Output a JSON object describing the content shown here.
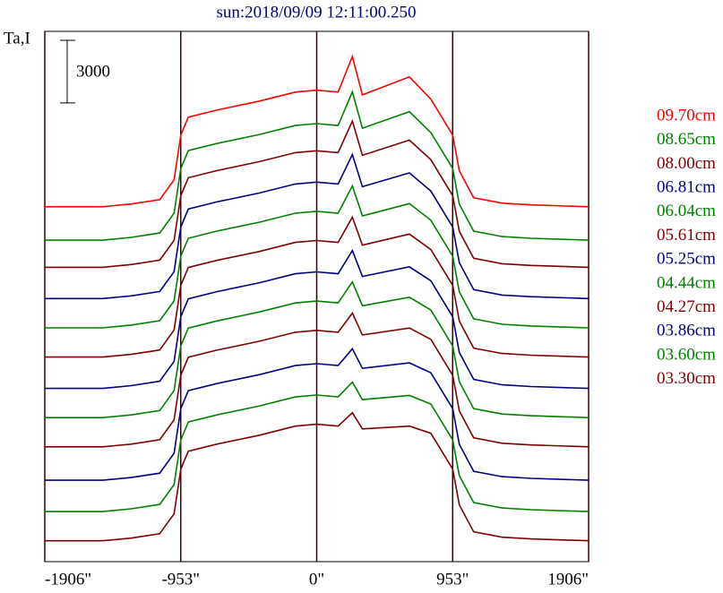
{
  "chart_data": {
    "type": "line",
    "title": "sun:2018/09/09 12:11:00.250",
    "y_label": "Ta,I",
    "scale_bar": 3000,
    "grid": true,
    "legend": "right",
    "x": [
      -1906,
      -1500,
      -1300,
      -1100,
      -1000,
      -953,
      -900,
      -700,
      -400,
      -150,
      0,
      150,
      250,
      320,
      650,
      800,
      953,
      1000,
      1100,
      1300,
      1500,
      1906
    ],
    "xlim": [
      -1906,
      1906
    ],
    "xticks": [
      {
        "value": -1906,
        "label": "-1906\""
      },
      {
        "value": -953,
        "label": "-953\""
      },
      {
        "value": 0,
        "label": "0\""
      },
      {
        "value": 953,
        "label": "953\""
      },
      {
        "value": 1906,
        "label": "1906\""
      }
    ],
    "ylim": [
      0,
      25400
    ],
    "series": [
      {
        "name": "09.70cm",
        "color": "#ff0000",
        "values": [
          17000,
          17000,
          17130,
          17340,
          18290,
          20430,
          21290,
          21630,
          22060,
          22490,
          22580,
          22490,
          24200,
          22360,
          23220,
          22150,
          20430,
          18720,
          17430,
          17170,
          17090,
          17000
        ]
      },
      {
        "name": "08.65cm",
        "color": "#008000",
        "values": [
          15400,
          15400,
          15530,
          15740,
          16690,
          18830,
          19690,
          20030,
          20460,
          20890,
          20980,
          20890,
          22500,
          20760,
          21550,
          20550,
          18830,
          17120,
          15830,
          15570,
          15490,
          15400
        ]
      },
      {
        "name": "08.00cm",
        "color": "#800000",
        "values": [
          14100,
          14100,
          14230,
          14440,
          15390,
          17530,
          18390,
          18730,
          19160,
          19590,
          19680,
          19590,
          21100,
          19460,
          20190,
          19250,
          17530,
          15820,
          14530,
          14270,
          14190,
          14100
        ]
      },
      {
        "name": "06.81cm",
        "color": "#000080",
        "values": [
          12600,
          12600,
          12730,
          12940,
          13890,
          16030,
          16890,
          17230,
          17660,
          18090,
          18180,
          18090,
          19500,
          17960,
          18620,
          17750,
          16030,
          14320,
          13030,
          12770,
          12690,
          12600
        ]
      },
      {
        "name": "06.04cm",
        "color": "#008000",
        "values": [
          11200,
          11200,
          11330,
          11540,
          12490,
          14630,
          15490,
          15830,
          16260,
          16690,
          16780,
          16690,
          18000,
          16560,
          17150,
          16350,
          14630,
          12920,
          11630,
          11370,
          11290,
          11200
        ]
      },
      {
        "name": "05.61cm",
        "color": "#800000",
        "values": [
          9800,
          9800,
          9930,
          10140,
          11090,
          13230,
          14090,
          14430,
          14860,
          15290,
          15380,
          15290,
          16500,
          15160,
          15690,
          14950,
          13230,
          11520,
          10230,
          9970,
          9890,
          9800
        ]
      },
      {
        "name": "05.25cm",
        "color": "#000080",
        "values": [
          8300,
          8300,
          8430,
          8640,
          9590,
          11730,
          12590,
          12930,
          13360,
          13790,
          13880,
          13790,
          14900,
          13660,
          14120,
          13450,
          11730,
          10020,
          8730,
          8470,
          8390,
          8300
        ]
      },
      {
        "name": "04.44cm",
        "color": "#008000",
        "values": [
          6900,
          6900,
          7030,
          7240,
          8190,
          10330,
          11190,
          11530,
          11960,
          12390,
          12480,
          12390,
          13400,
          12260,
          12660,
          12050,
          10330,
          8620,
          7330,
          7070,
          6990,
          6900
        ]
      },
      {
        "name": "04.27cm",
        "color": "#800000",
        "values": [
          5500,
          5500,
          5630,
          5840,
          6790,
          8930,
          9790,
          10130,
          10560,
          10990,
          11080,
          10990,
          11900,
          10860,
          11190,
          10650,
          8930,
          7220,
          5930,
          5670,
          5590,
          5500
        ]
      },
      {
        "name": "03.86cm",
        "color": "#000080",
        "values": [
          3900,
          3900,
          4030,
          4240,
          5190,
          7330,
          8190,
          8530,
          8960,
          9390,
          9480,
          9390,
          10200,
          9260,
          9520,
          9050,
          7330,
          5620,
          4330,
          4070,
          3990,
          3900
        ]
      },
      {
        "name": "03.60cm",
        "color": "#008000",
        "values": [
          2400,
          2400,
          2530,
          2740,
          3690,
          5830,
          6690,
          7030,
          7460,
          7890,
          7980,
          7890,
          8600,
          7760,
          7960,
          7550,
          5830,
          4120,
          2830,
          2570,
          2490,
          2400
        ]
      },
      {
        "name": "03.30cm",
        "color": "#800000",
        "values": [
          1000,
          1000,
          1130,
          1340,
          2290,
          4430,
          5290,
          5630,
          6060,
          6490,
          6580,
          6490,
          7130,
          6360,
          6490,
          6150,
          4430,
          2720,
          1430,
          1170,
          1090,
          1000
        ]
      }
    ]
  }
}
